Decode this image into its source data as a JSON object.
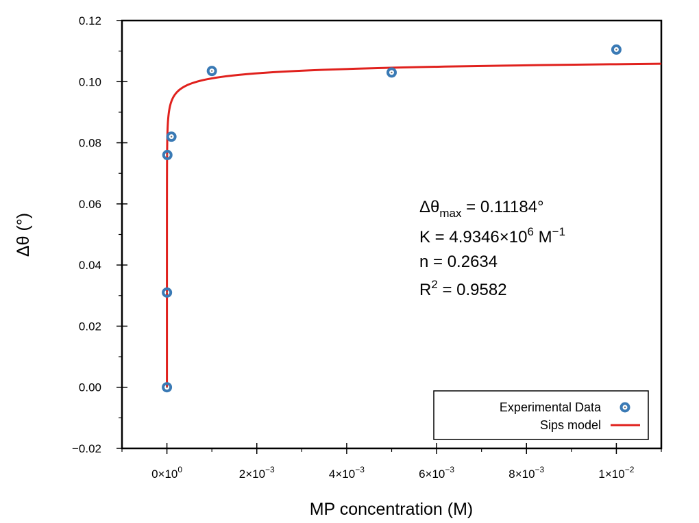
{
  "chart_data": {
    "type": "scatter",
    "xlabel": "MP concentration (M)",
    "ylabel": "Δθ (°)",
    "xlim": [
      -0.001,
      0.011
    ],
    "ylim": [
      -0.02,
      0.12
    ],
    "grid": false,
    "x_ticks": [
      {
        "value": 0,
        "mantissa": "0×10",
        "exp": "0"
      },
      {
        "value": 0.002,
        "mantissa": "2×10",
        "exp": "−3"
      },
      {
        "value": 0.004,
        "mantissa": "4×10",
        "exp": "−3"
      },
      {
        "value": 0.006,
        "mantissa": "6×10",
        "exp": "−3"
      },
      {
        "value": 0.008,
        "mantissa": "8×10",
        "exp": "−3"
      },
      {
        "value": 0.01,
        "mantissa": "1×10",
        "exp": "−2"
      }
    ],
    "y_ticks": [
      {
        "value": -0.02,
        "label": "−0.02"
      },
      {
        "value": 0.0,
        "label": "0.00"
      },
      {
        "value": 0.02,
        "label": "0.02"
      },
      {
        "value": 0.04,
        "label": "0.04"
      },
      {
        "value": 0.06,
        "label": "0.06"
      },
      {
        "value": 0.08,
        "label": "0.08"
      },
      {
        "value": 0.1,
        "label": "0.10"
      },
      {
        "value": 0.12,
        "label": "0.12"
      }
    ],
    "series": [
      {
        "name": "Experimental Data",
        "kind": "scatter",
        "color": "#3a7ab5",
        "x": [
          0,
          1e-06,
          1e-05,
          0.0001,
          0.001,
          0.005,
          0.01
        ],
        "y": [
          0.0,
          0.031,
          0.076,
          0.082,
          0.1035,
          0.103,
          0.1105
        ]
      },
      {
        "name": "Sips model",
        "kind": "line",
        "color": "#e0211d",
        "model": {
          "theta_max": 0.11184,
          "K": 4934600,
          "n": 0.2634
        }
      }
    ],
    "legend": {
      "position": "bottom-right",
      "entries": [
        "Experimental Data",
        "Sips model"
      ]
    },
    "annotations": {
      "delta_theta_symbol": "Δθ",
      "delta_theta_sub": "max",
      "delta_theta_value": " = 0.11184°",
      "k_prefix": "K = 4.9346×10",
      "k_exp": "6",
      "k_unit": " M",
      "k_unit_exp": "−1",
      "n_line": "n = 0.2634",
      "r_prefix": "R",
      "r_exp": "2",
      "r_value": " = 0.9582"
    }
  }
}
